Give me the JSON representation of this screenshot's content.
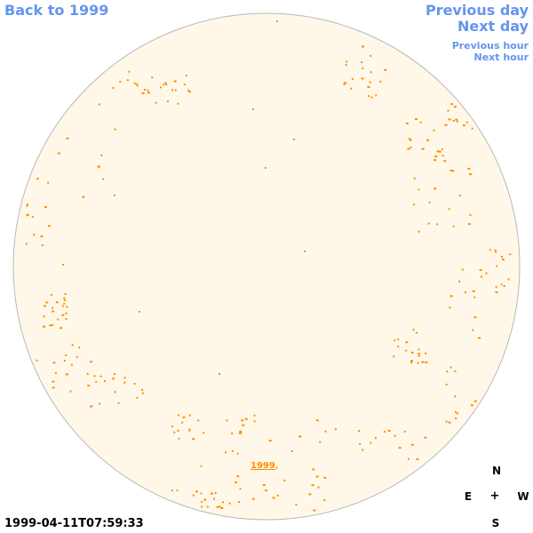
{
  "nav": {
    "back": "Back to 1999",
    "previous_day": "Previous day",
    "next_day": "Next day",
    "previous_hour": "Previous hour",
    "next_hour": "Next hour"
  },
  "sky": {
    "year_label": "1999",
    "timestamp": "1999-04-11T07:59:33",
    "compass": {
      "n": "N",
      "e": "E",
      "w": "W",
      "s": "S",
      "center": "+"
    },
    "colors": {
      "disc": "#fff8e8",
      "outline": "#b8b8b8",
      "marker": "#ff8c00",
      "link": "#6495ed"
    }
  }
}
